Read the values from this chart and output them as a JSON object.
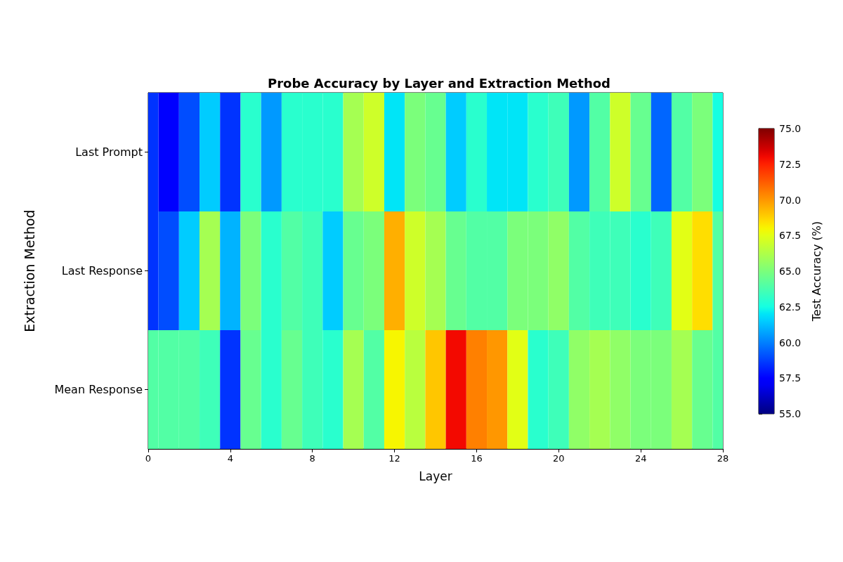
{
  "chart_data": {
    "type": "heatmap",
    "title": "Probe Accuracy by Layer and Extraction Method",
    "xlabel": "Layer",
    "ylabel": "Extraction Method",
    "clabel": "Test Accuracy (%)",
    "x": [
      0,
      1,
      2,
      3,
      4,
      5,
      6,
      7,
      8,
      9,
      10,
      11,
      12,
      13,
      14,
      15,
      16,
      17,
      18,
      19,
      20,
      21,
      22,
      23,
      24,
      25,
      26,
      27,
      28
    ],
    "xlim": [
      0,
      28
    ],
    "xticks": [
      0,
      4,
      8,
      12,
      16,
      20,
      24,
      28
    ],
    "y_categories": [
      "Last Prompt",
      "Last Response",
      "Mean Response"
    ],
    "cells": [
      [
        58.5,
        57.5,
        59,
        61.5,
        58.5,
        63,
        60.5,
        63,
        63,
        63,
        66,
        67,
        62,
        65,
        64.5,
        61.5,
        63,
        62,
        62,
        63,
        63.5,
        60.5,
        64,
        67,
        64.5,
        59.5,
        64,
        65,
        62.5
      ],
      [
        58.5,
        59,
        61.5,
        66,
        61,
        65,
        63,
        64,
        63.5,
        61.5,
        64.5,
        65,
        69.5,
        67,
        66,
        64.5,
        64,
        64,
        65,
        65,
        65.5,
        64,
        63.5,
        63.5,
        63,
        63.5,
        67.5,
        68.5,
        64
      ],
      [
        64,
        64,
        64,
        63.5,
        58.5,
        64.5,
        63,
        64.5,
        63.5,
        63,
        66,
        64,
        68,
        66.5,
        69,
        73,
        70.5,
        70,
        67.5,
        63,
        63.5,
        65.5,
        66,
        65.5,
        65,
        65,
        66,
        64.5,
        64
      ]
    ],
    "clim": [
      55,
      75
    ],
    "cticks": [
      {
        "value": 55,
        "label": "55.0"
      },
      57.5,
      {
        "value": 60,
        "label": "60.0"
      },
      62.5,
      {
        "value": 65,
        "label": "65.0"
      },
      67.5,
      {
        "value": 70,
        "label": "70.0"
      },
      72.5,
      {
        "value": 75,
        "label": "75.0"
      }
    ]
  }
}
